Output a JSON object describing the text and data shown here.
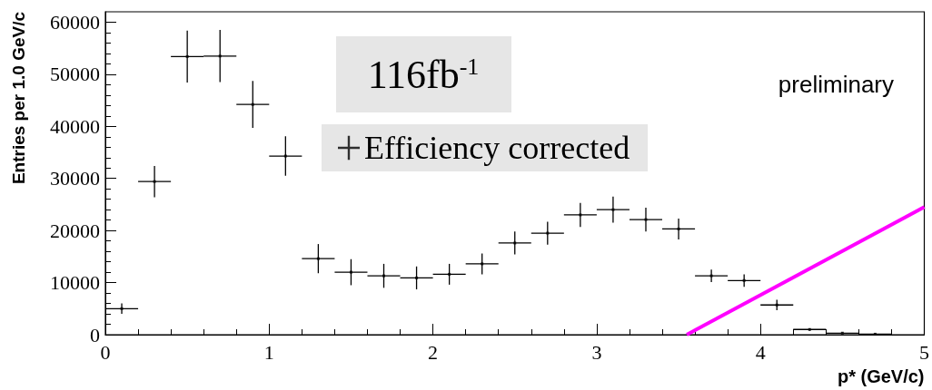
{
  "chart_data": {
    "type": "scatter",
    "xlabel": "p* (GeV/c)",
    "ylabel": "Entries per 1.0 GeV/c",
    "x": [
      0.1,
      0.3,
      0.5,
      0.7,
      0.9,
      1.1,
      1.3,
      1.5,
      1.7,
      1.9,
      2.1,
      2.3,
      2.5,
      2.7,
      2.9,
      3.1,
      3.3,
      3.5,
      3.7,
      3.9,
      4.1,
      4.3,
      4.5,
      4.7
    ],
    "series": [
      {
        "name": "Efficiency corrected",
        "color": "#000000",
        "marker": "square",
        "values": [
          5000,
          29400,
          53400,
          53500,
          44200,
          34300,
          14600,
          12000,
          11300,
          10900,
          11600,
          13600,
          17600,
          19500,
          23000,
          24000,
          22100,
          20300,
          11300,
          10400,
          5700,
          1000,
          300,
          100
        ],
        "errors": [
          1000,
          3000,
          5000,
          5000,
          4500,
          3800,
          2800,
          2500,
          2300,
          2200,
          2000,
          2000,
          2200,
          2200,
          2300,
          2500,
          2300,
          2000,
          1200,
          1200,
          1000,
          200,
          100,
          100
        ],
        "xerrors": [
          0.1,
          0.1,
          0.1,
          0.1,
          0.1,
          0.1,
          0.1,
          0.1,
          0.1,
          0.1,
          0.1,
          0.1,
          0.1,
          0.1,
          0.1,
          0.1,
          0.1,
          0.1,
          0.1,
          0.1,
          0.1,
          0.1,
          0.1,
          0.1
        ]
      },
      {
        "type": "line",
        "color": "#ff00ff",
        "x": [
          3.55,
          5
        ],
        "values": [
          0,
          24500
        ]
      }
    ],
    "xlim": [
      0,
      5
    ],
    "xticks": [
      0,
      1,
      2,
      3,
      4,
      5
    ],
    "ylim": [
      0,
      62000
    ],
    "yticks": [
      0,
      10000,
      20000,
      30000,
      40000,
      50000,
      60000
    ],
    "grid": false,
    "legend": "top",
    "line_style": "solid",
    "annotations": [
      "116fb$^{-1}$",
      "preliminary"
    ]
  }
}
